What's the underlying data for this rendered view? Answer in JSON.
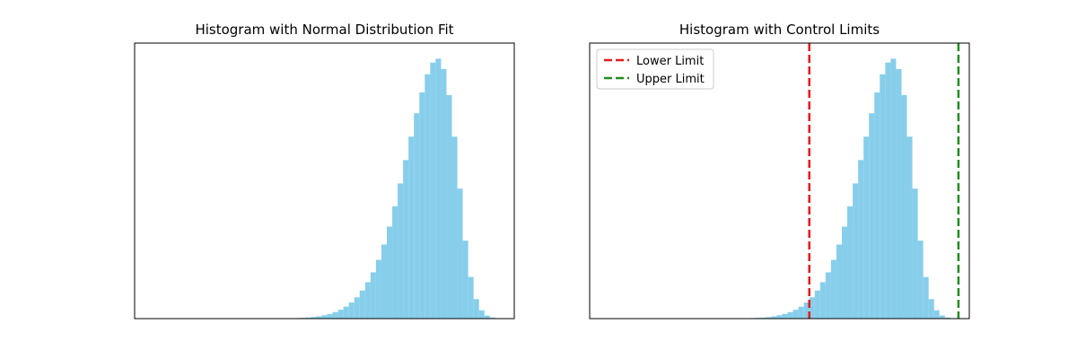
{
  "chart_data": [
    {
      "type": "bar",
      "title": "Histogram with Normal Distribution Fit",
      "xlabel": "",
      "ylabel": "",
      "bar_color": "#87CEEB",
      "x_ticks": [],
      "y_ticks": [],
      "bins": [
        {
          "x": 0.6,
          "y": 0.002
        },
        {
          "x": 0.62,
          "y": 0.003
        },
        {
          "x": 0.64,
          "y": 0.004
        },
        {
          "x": 0.66,
          "y": 0.006
        },
        {
          "x": 0.68,
          "y": 0.009
        },
        {
          "x": 0.7,
          "y": 0.013
        },
        {
          "x": 0.72,
          "y": 0.018
        },
        {
          "x": 0.74,
          "y": 0.025
        },
        {
          "x": 0.76,
          "y": 0.034
        },
        {
          "x": 0.78,
          "y": 0.046
        },
        {
          "x": 0.8,
          "y": 0.062
        },
        {
          "x": 0.82,
          "y": 0.082
        },
        {
          "x": 0.84,
          "y": 0.108
        },
        {
          "x": 0.86,
          "y": 0.14
        },
        {
          "x": 0.88,
          "y": 0.178
        },
        {
          "x": 0.9,
          "y": 0.226
        },
        {
          "x": 0.92,
          "y": 0.285
        },
        {
          "x": 0.94,
          "y": 0.354
        },
        {
          "x": 0.96,
          "y": 0.432
        },
        {
          "x": 0.98,
          "y": 0.52
        },
        {
          "x": 1.0,
          "y": 0.61
        },
        {
          "x": 1.02,
          "y": 0.7
        },
        {
          "x": 1.04,
          "y": 0.79
        },
        {
          "x": 1.06,
          "y": 0.87
        },
        {
          "x": 1.08,
          "y": 0.94
        },
        {
          "x": 1.1,
          "y": 0.985
        },
        {
          "x": 1.12,
          "y": 1.0
        },
        {
          "x": 1.14,
          "y": 0.96
        },
        {
          "x": 1.16,
          "y": 0.86
        },
        {
          "x": 1.18,
          "y": 0.7
        },
        {
          "x": 1.2,
          "y": 0.5
        },
        {
          "x": 1.22,
          "y": 0.3
        },
        {
          "x": 1.24,
          "y": 0.16
        },
        {
          "x": 1.26,
          "y": 0.075
        },
        {
          "x": 1.28,
          "y": 0.032
        },
        {
          "x": 1.3,
          "y": 0.012
        },
        {
          "x": 1.32,
          "y": 0.004
        }
      ],
      "bin_width": 0.02,
      "xlim": [
        0.0,
        1.4
      ],
      "ylim": [
        0,
        1.06
      ]
    },
    {
      "type": "bar",
      "title": "Histogram with Control Limits",
      "xlabel": "",
      "ylabel": "",
      "bar_color": "#87CEEB",
      "x_ticks": [],
      "y_ticks": [],
      "legend_position": "top-left",
      "legend": [
        {
          "label": "Lower Limit",
          "color": "#E41A1C",
          "style": "dashed"
        },
        {
          "label": "Upper Limit",
          "color": "#228B22",
          "style": "dashed"
        }
      ],
      "lines": [
        {
          "name": "Lower Limit",
          "x": 0.81,
          "color": "#E41A1C"
        },
        {
          "name": "Upper Limit",
          "x": 1.36,
          "color": "#228B22"
        }
      ],
      "bins": [
        {
          "x": 0.6,
          "y": 0.002
        },
        {
          "x": 0.62,
          "y": 0.003
        },
        {
          "x": 0.64,
          "y": 0.004
        },
        {
          "x": 0.66,
          "y": 0.006
        },
        {
          "x": 0.68,
          "y": 0.009
        },
        {
          "x": 0.7,
          "y": 0.013
        },
        {
          "x": 0.72,
          "y": 0.018
        },
        {
          "x": 0.74,
          "y": 0.025
        },
        {
          "x": 0.76,
          "y": 0.034
        },
        {
          "x": 0.78,
          "y": 0.046
        },
        {
          "x": 0.8,
          "y": 0.062
        },
        {
          "x": 0.82,
          "y": 0.082
        },
        {
          "x": 0.84,
          "y": 0.108
        },
        {
          "x": 0.86,
          "y": 0.14
        },
        {
          "x": 0.88,
          "y": 0.178
        },
        {
          "x": 0.9,
          "y": 0.226
        },
        {
          "x": 0.92,
          "y": 0.285
        },
        {
          "x": 0.94,
          "y": 0.354
        },
        {
          "x": 0.96,
          "y": 0.432
        },
        {
          "x": 0.98,
          "y": 0.52
        },
        {
          "x": 1.0,
          "y": 0.61
        },
        {
          "x": 1.02,
          "y": 0.7
        },
        {
          "x": 1.04,
          "y": 0.79
        },
        {
          "x": 1.06,
          "y": 0.87
        },
        {
          "x": 1.08,
          "y": 0.94
        },
        {
          "x": 1.1,
          "y": 0.985
        },
        {
          "x": 1.12,
          "y": 1.0
        },
        {
          "x": 1.14,
          "y": 0.96
        },
        {
          "x": 1.16,
          "y": 0.86
        },
        {
          "x": 1.18,
          "y": 0.7
        },
        {
          "x": 1.2,
          "y": 0.5
        },
        {
          "x": 1.22,
          "y": 0.3
        },
        {
          "x": 1.24,
          "y": 0.16
        },
        {
          "x": 1.26,
          "y": 0.075
        },
        {
          "x": 1.28,
          "y": 0.032
        },
        {
          "x": 1.3,
          "y": 0.012
        },
        {
          "x": 1.32,
          "y": 0.004
        }
      ],
      "bin_width": 0.02,
      "xlim": [
        0.0,
        1.4
      ],
      "ylim": [
        0,
        1.06
      ]
    }
  ]
}
